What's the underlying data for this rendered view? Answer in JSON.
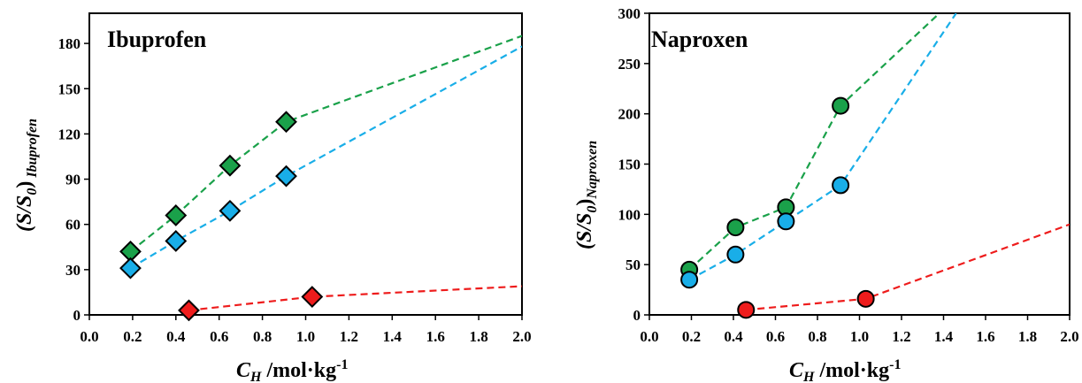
{
  "chart_data": [
    {
      "type": "scatter",
      "title": "Ibuprofen",
      "ylabel_main": "(S/S",
      "ylabel_sub0": "0",
      "ylabel_close": ")",
      "ylabel_sub": " Ibuprofen",
      "xlabel_main": "C",
      "xlabel_sub": "H",
      "xlabel_units": " /mol·kg",
      "xlabel_sup": "-1",
      "xlim": [
        0.0,
        2.0
      ],
      "ylim": [
        0,
        200
      ],
      "xticks": [
        "0.0",
        "0.2",
        "0.4",
        "0.6",
        "0.8",
        "1.0",
        "1.2",
        "1.4",
        "1.6",
        "1.8",
        "2.0"
      ],
      "yticks": [
        "0",
        "30",
        "60",
        "90",
        "120",
        "150",
        "180"
      ],
      "marker": "diamond",
      "series": [
        {
          "color": "#1aa14a",
          "points": [
            [
              0.19,
              42
            ],
            [
              0.4,
              66
            ],
            [
              0.65,
              99
            ],
            [
              0.91,
              128
            ]
          ],
          "line": [
            [
              0.19,
              42
            ],
            [
              0.4,
              66
            ],
            [
              0.65,
              99
            ],
            [
              0.91,
              128
            ],
            [
              2.0,
              185
            ]
          ]
        },
        {
          "color": "#19aee8",
          "points": [
            [
              0.19,
              31
            ],
            [
              0.4,
              49
            ],
            [
              0.65,
              69
            ],
            [
              0.91,
              92
            ]
          ],
          "line": [
            [
              0.19,
              31
            ],
            [
              0.4,
              49
            ],
            [
              0.65,
              69
            ],
            [
              0.91,
              92
            ],
            [
              2.0,
              178
            ]
          ]
        },
        {
          "color": "#ee1c1c",
          "points": [
            [
              0.46,
              3
            ],
            [
              1.03,
              12
            ]
          ],
          "line": [
            [
              0.46,
              3
            ],
            [
              1.03,
              12
            ],
            [
              2.0,
              19
            ]
          ]
        }
      ]
    },
    {
      "type": "scatter",
      "title": "Naproxen",
      "ylabel_main": "(S/S",
      "ylabel_sub0": "0",
      "ylabel_close": ")",
      "ylabel_sub": "Naproxen",
      "xlabel_main": "C",
      "xlabel_sub": "H",
      "xlabel_units": " /mol·kg",
      "xlabel_sup": "-1",
      "xlim": [
        0.0,
        2.0
      ],
      "ylim": [
        0,
        300
      ],
      "xticks": [
        "0.0",
        "0.2",
        "0.4",
        "0.6",
        "0.8",
        "1.0",
        "1.2",
        "1.4",
        "1.6",
        "1.8",
        "2.0"
      ],
      "yticks": [
        "0",
        "50",
        "100",
        "150",
        "200",
        "250",
        "300"
      ],
      "marker": "circle",
      "series": [
        {
          "color": "#1aa14a",
          "points": [
            [
              0.19,
              45
            ],
            [
              0.41,
              87
            ],
            [
              0.65,
              107
            ],
            [
              0.91,
              208
            ]
          ],
          "line": [
            [
              0.19,
              45
            ],
            [
              0.41,
              87
            ],
            [
              0.65,
              107
            ],
            [
              0.91,
              208
            ],
            [
              1.38,
              300
            ]
          ]
        },
        {
          "color": "#19aee8",
          "points": [
            [
              0.19,
              35
            ],
            [
              0.41,
              60
            ],
            [
              0.65,
              93
            ],
            [
              0.91,
              129
            ]
          ],
          "line": [
            [
              0.19,
              35
            ],
            [
              0.41,
              60
            ],
            [
              0.65,
              93
            ],
            [
              0.91,
              129
            ],
            [
              1.46,
              300
            ]
          ]
        },
        {
          "color": "#ee1c1c",
          "points": [
            [
              0.46,
              5
            ],
            [
              1.03,
              16
            ]
          ],
          "line": [
            [
              0.46,
              5
            ],
            [
              1.03,
              16
            ],
            [
              2.0,
              90
            ]
          ]
        }
      ]
    }
  ]
}
